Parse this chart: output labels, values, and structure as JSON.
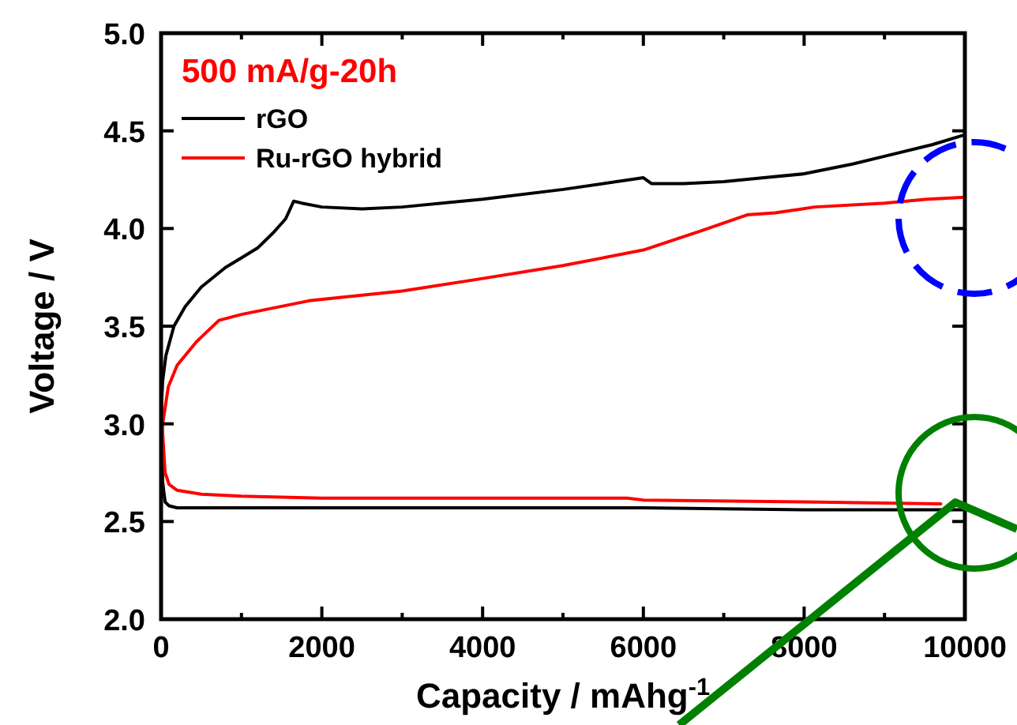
{
  "chart_data": {
    "type": "line",
    "xlabel": "Capacity  / mAhg$^{-1}$",
    "ylabel": "Voltage / V",
    "annotations": [
      "500 mA/g-20h"
    ],
    "xlim": [
      0,
      10000
    ],
    "ylim": [
      2.0,
      5.0
    ],
    "xticks": [
      0,
      {
        "value": 1000,
        "label": null
      },
      2000,
      {
        "value": 3000,
        "label": null
      },
      4000,
      {
        "value": 5000,
        "label": null
      },
      6000,
      {
        "value": 7000,
        "label": null
      },
      8000,
      {
        "value": 9000,
        "label": null
      },
      10000
    ],
    "yticks": [
      {
        "value": 2.0,
        "label": "2.0"
      },
      2.5,
      {
        "value": 3.0,
        "label": "3.0"
      },
      3.5,
      {
        "value": 4.0,
        "label": "4.0"
      },
      4.5,
      {
        "value": 5.0,
        "label": "5.0"
      }
    ],
    "legend": "top left",
    "grid": false,
    "line_style": "solid",
    "marker": "none",
    "series": [
      {
        "name": "rGO",
        "color": "#000000",
        "x": [
          10000,
          8000,
          6000,
          4000,
          2000,
          1000,
          500,
          200,
          100,
          50,
          20,
          0,
          0,
          20,
          60,
          160,
          300,
          500,
          800,
          1000,
          1200,
          1400,
          1550,
          1650,
          1750,
          2000,
          2500,
          3000,
          4000,
          5000,
          6000,
          6100,
          6500,
          7000,
          7500,
          8000,
          8600,
          9000,
          9600,
          10000
        ],
        "values": [
          2.56,
          2.56,
          2.57,
          2.57,
          2.57,
          2.57,
          2.57,
          2.57,
          2.58,
          2.6,
          2.7,
          3.1,
          3.05,
          3.22,
          3.35,
          3.5,
          3.6,
          3.7,
          3.8,
          3.85,
          3.9,
          3.98,
          4.05,
          4.14,
          4.13,
          4.11,
          4.1,
          4.11,
          4.15,
          4.2,
          4.26,
          4.23,
          4.23,
          4.24,
          4.26,
          4.28,
          4.33,
          4.37,
          4.43,
          4.48
        ]
      },
      {
        "name": "Ru-rGO hybrid",
        "color": "#ff0000",
        "x": [
          9700,
          8000,
          6000,
          5800,
          4000,
          2000,
          1000,
          500,
          200,
          100,
          50,
          20,
          0,
          0,
          20,
          90,
          200,
          440,
          720,
          1000,
          1840,
          3000,
          3940,
          5000,
          6000,
          6730,
          7290,
          7640,
          8130,
          9000,
          9530,
          10000
        ],
        "values": [
          2.59,
          2.6,
          2.61,
          2.62,
          2.62,
          2.62,
          2.63,
          2.64,
          2.66,
          2.69,
          2.75,
          2.95,
          3.19,
          2.79,
          3.0,
          3.19,
          3.3,
          3.42,
          3.53,
          3.56,
          3.63,
          3.68,
          3.74,
          3.81,
          3.89,
          3.99,
          4.07,
          4.08,
          4.11,
          4.13,
          4.15,
          4.16
        ]
      }
    ]
  }
}
